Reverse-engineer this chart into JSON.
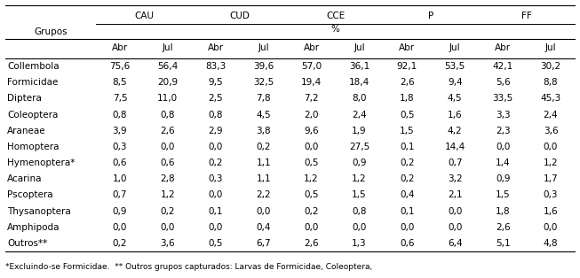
{
  "title_row": [
    "CAU",
    "CUD",
    "CCE",
    "P",
    "FF"
  ],
  "subheader": "%",
  "col_subheaders": [
    "Abr",
    "Jul",
    "Abr",
    "Jul",
    "Abr",
    "Jul",
    "Abr",
    "Jul",
    "Abr",
    "Jul"
  ],
  "row_labels": [
    "Collembola",
    "Formicidae",
    "Diptera",
    "Coleoptera",
    "Araneae",
    "Homoptera",
    "Hymenoptera*",
    "Acarina",
    "Pscoptera",
    "Thysanoptera",
    "Amphipoda",
    "Outros**"
  ],
  "data": [
    [
      "75,6",
      "56,4",
      "83,3",
      "39,6",
      "57,0",
      "36,1",
      "92,1",
      "53,5",
      "42,1",
      "30,2"
    ],
    [
      "8,5",
      "20,9",
      "9,5",
      "32,5",
      "19,4",
      "18,4",
      "2,6",
      "9,4",
      "5,6",
      "8,8"
    ],
    [
      "7,5",
      "11,0",
      "2,5",
      "7,8",
      "7,2",
      "8,0",
      "1,8",
      "4,5",
      "33,5",
      "45,3"
    ],
    [
      "0,8",
      "0,8",
      "0,8",
      "4,5",
      "2,0",
      "2,4",
      "0,5",
      "1,6",
      "3,3",
      "2,4"
    ],
    [
      "3,9",
      "2,6",
      "2,9",
      "3,8",
      "9,6",
      "1,9",
      "1,5",
      "4,2",
      "2,3",
      "3,6"
    ],
    [
      "0,3",
      "0,0",
      "0,0",
      "0,2",
      "0,0",
      "27,5",
      "0,1",
      "14,4",
      "0,0",
      "0,0"
    ],
    [
      "0,6",
      "0,6",
      "0,2",
      "1,1",
      "0,5",
      "0,9",
      "0,2",
      "0,7",
      "1,4",
      "1,2"
    ],
    [
      "1,0",
      "2,8",
      "0,3",
      "1,1",
      "1,2",
      "1,2",
      "0,2",
      "3,2",
      "0,9",
      "1,7"
    ],
    [
      "0,7",
      "1,2",
      "0,0",
      "2,2",
      "0,5",
      "1,5",
      "0,4",
      "2,1",
      "1,5",
      "0,3"
    ],
    [
      "0,9",
      "0,2",
      "0,1",
      "0,0",
      "0,2",
      "0,8",
      "0,1",
      "0,0",
      "1,8",
      "1,6"
    ],
    [
      "0,0",
      "0,0",
      "0,0",
      "0,4",
      "0,0",
      "0,0",
      "0,0",
      "0,0",
      "2,6",
      "0,0"
    ],
    [
      "0,2",
      "3,6",
      "0,5",
      "6,7",
      "2,6",
      "1,3",
      "0,6",
      "6,4",
      "5,1",
      "4,8"
    ]
  ],
  "footnote": "*Excluindo-se Formicidae.  ** Outros grupos capturados: Larvas de Formicidae, Coleoptera,",
  "grupos_label": "Grupos",
  "bg_color": "#ffffff",
  "text_color": "#000000",
  "font_size": 7.5,
  "footnote_font_size": 6.5
}
